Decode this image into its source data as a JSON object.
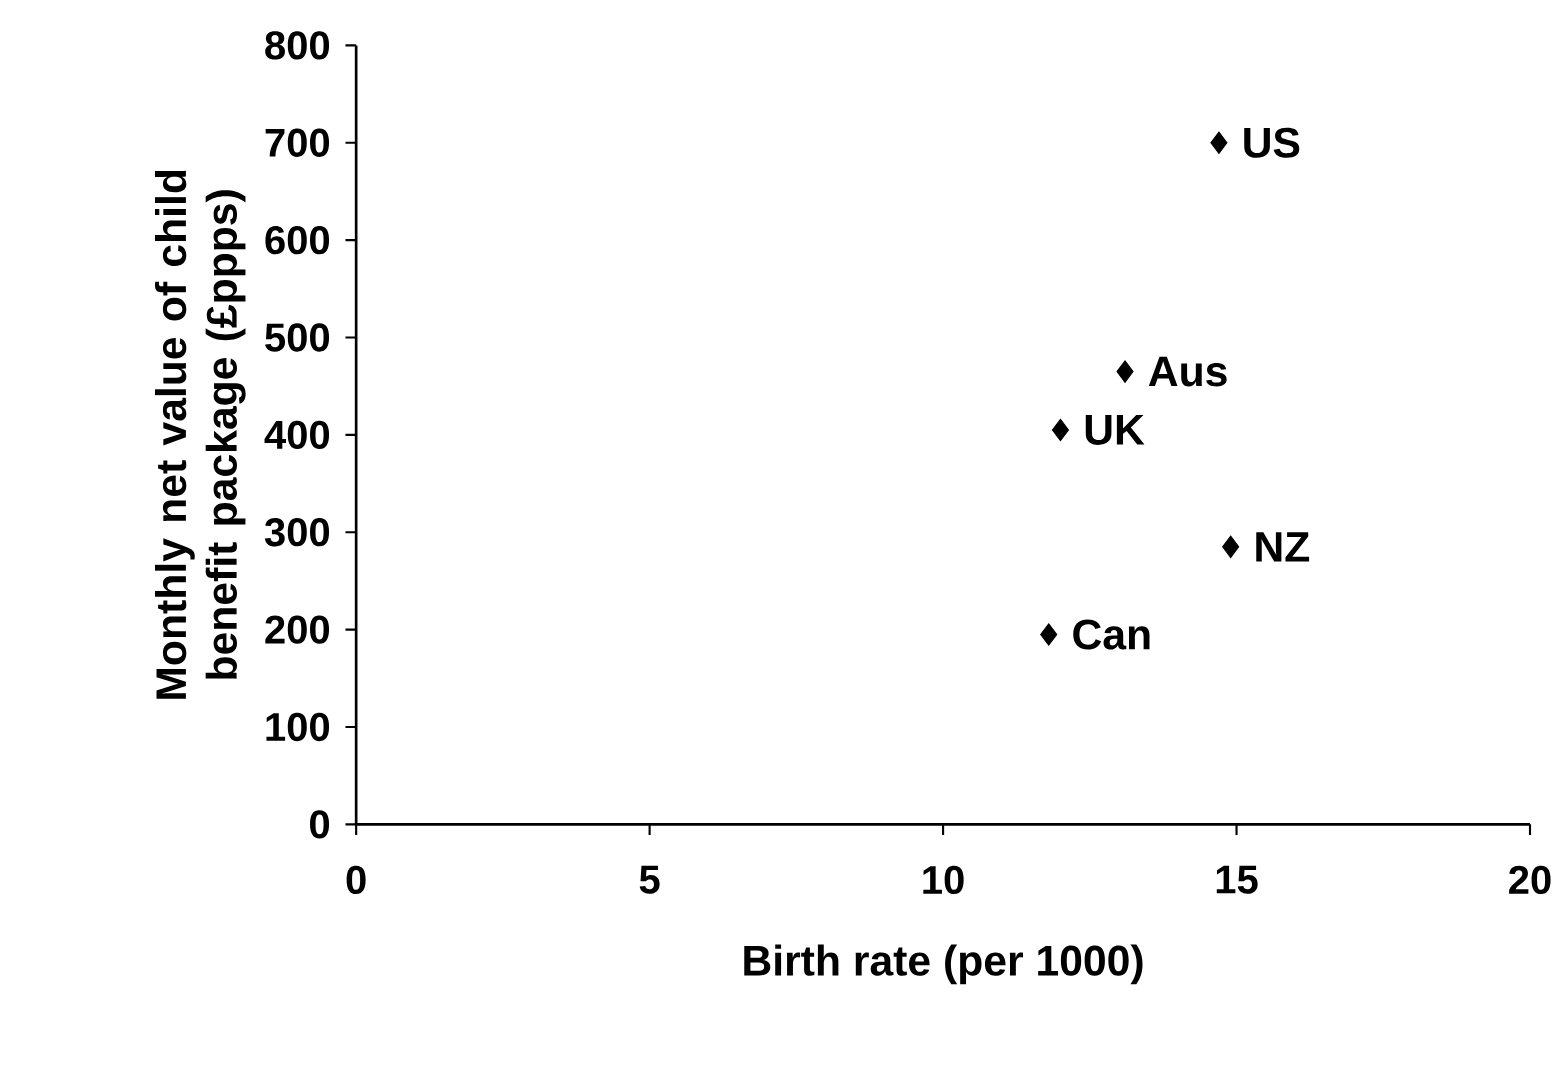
{
  "chart_data": {
    "type": "scatter",
    "xlabel": "Birth rate (per 1000)",
    "ylabel": "Monthly net value of child benefit package (£ppps)",
    "x": [
      14.7,
      13.1,
      12.0,
      14.9,
      11.8
    ],
    "values": [
      700,
      465,
      405,
      285,
      195
    ],
    "color": "#000000",
    "marker": "diamond",
    "grid": false,
    "xlim": [
      0,
      20
    ],
    "xticks": [
      0,
      5,
      10,
      15,
      20
    ],
    "ylim": [
      0,
      800
    ],
    "yticks": [
      0,
      100,
      200,
      300,
      400,
      500,
      600,
      700,
      800
    ],
    "annotations": [
      {
        "text": "US",
        "x": 14.7,
        "y": 700
      },
      {
        "text": "Aus",
        "x": 13.1,
        "y": 465
      },
      {
        "text": "UK",
        "x": 12.0,
        "y": 405
      },
      {
        "text": "NZ",
        "x": 14.9,
        "y": 285
      },
      {
        "text": "Can",
        "x": 11.8,
        "y": 195
      }
    ]
  }
}
